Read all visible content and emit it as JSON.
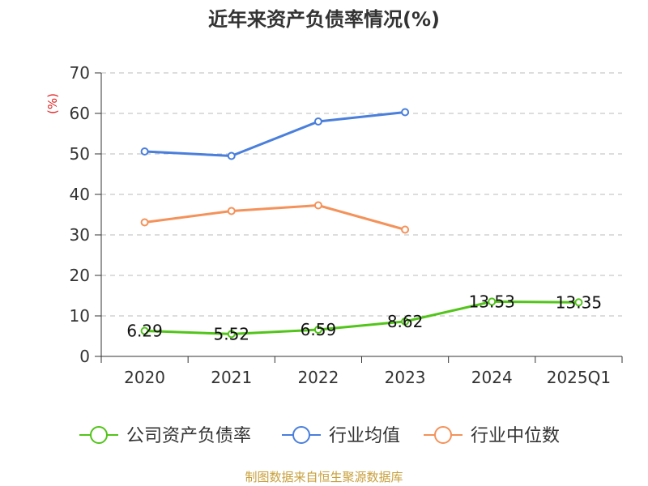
{
  "title": "近年来资产负债率情况(%)",
  "footer": "制图数据来自恒生聚源数据库",
  "y_unit": "(%)",
  "chart_data": {
    "type": "line",
    "title": "近年来资产负债率情况(%)",
    "xlabel": "",
    "ylabel": "(%)",
    "categories": [
      "2020",
      "2021",
      "2022",
      "2023",
      "2024",
      "2025Q1"
    ],
    "ylim": [
      0,
      70
    ],
    "yticks": [
      0,
      10,
      20,
      30,
      40,
      50,
      60,
      70
    ],
    "grid": true,
    "legend_position": "bottom",
    "series": [
      {
        "name": "公司资产负债率",
        "color": "#52c41a",
        "values": [
          6.29,
          5.52,
          6.59,
          8.62,
          13.53,
          13.35
        ],
        "labels": [
          "6.29",
          "5.52",
          "6.59",
          "8.62",
          "13.53",
          "13.35"
        ]
      },
      {
        "name": "行业均值",
        "color": "#4a7fdc",
        "values": [
          50.6,
          49.5,
          58.0,
          60.3,
          null,
          null
        ]
      },
      {
        "name": "行业中位数",
        "color": "#f4925a",
        "values": [
          33.1,
          35.9,
          37.3,
          31.3,
          null,
          null
        ]
      }
    ]
  }
}
